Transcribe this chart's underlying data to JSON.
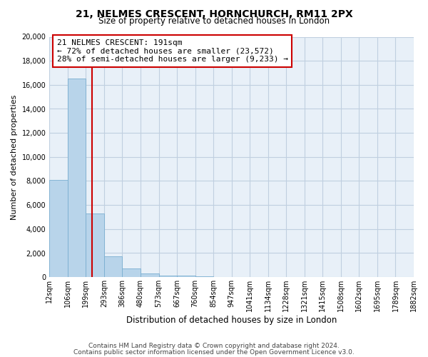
{
  "title": "21, NELMES CRESCENT, HORNCHURCH, RM11 2PX",
  "subtitle": "Size of property relative to detached houses in London",
  "xlabel": "Distribution of detached houses by size in London",
  "ylabel": "Number of detached properties",
  "bar_values": [
    8100,
    16500,
    5300,
    1750,
    750,
    300,
    150,
    100,
    50,
    0,
    0,
    0,
    0,
    0,
    0,
    0,
    0,
    0,
    0,
    0
  ],
  "bin_labels": [
    "12sqm",
    "106sqm",
    "199sqm",
    "293sqm",
    "386sqm",
    "480sqm",
    "573sqm",
    "667sqm",
    "760sqm",
    "854sqm",
    "947sqm",
    "1041sqm",
    "1134sqm",
    "1228sqm",
    "1321sqm",
    "1415sqm",
    "1508sqm",
    "1602sqm",
    "1695sqm",
    "1789sqm",
    "1882sqm"
  ],
  "bar_color": "#b8d4ea",
  "bar_edgecolor": "#7aaed0",
  "property_label": "21 NELMES CRESCENT: 191sqm",
  "annotation_line1": "← 72% of detached houses are smaller (23,572)",
  "annotation_line2": "28% of semi-detached houses are larger (9,233) →",
  "vline_color": "#cc0000",
  "vline_position": 1.85,
  "ylim": [
    0,
    20000
  ],
  "yticks": [
    0,
    2000,
    4000,
    6000,
    8000,
    10000,
    12000,
    14000,
    16000,
    18000,
    20000
  ],
  "footer_line1": "Contains HM Land Registry data © Crown copyright and database right 2024.",
  "footer_line2": "Contains public sector information licensed under the Open Government Licence v3.0.",
  "annotation_box_facecolor": "#ffffff",
  "annotation_box_edgecolor": "#cc0000",
  "axes_facecolor": "#e8f0f8",
  "background_color": "#ffffff",
  "grid_color": "#c0cfe0",
  "title_fontsize": 10,
  "subtitle_fontsize": 8.5,
  "ylabel_fontsize": 8,
  "xlabel_fontsize": 8.5,
  "ann_fontsize": 8,
  "tick_fontsize": 7,
  "footer_fontsize": 6.5
}
